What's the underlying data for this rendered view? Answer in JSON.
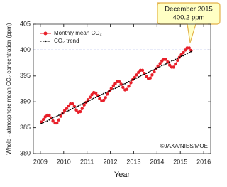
{
  "chart_data": {
    "type": "line",
    "ylabel": "Whole - atmosphere mean CO₂ concentration (ppm)",
    "xlabel": "Year",
    "annotation": {
      "lines": [
        "December 2015",
        "400.2 ppm"
      ]
    },
    "credit": "©JAXA/NIES/MOE",
    "xlim": [
      2008.7,
      2016.3
    ],
    "xticks": [
      2009,
      2010,
      2011,
      2012,
      2013,
      2014,
      2015,
      2016
    ],
    "ylim": [
      380,
      405
    ],
    "yticks": [
      380,
      385,
      390,
      395,
      400,
      405
    ],
    "reference_line": {
      "value": 400,
      "color": "#4a5fd0"
    },
    "x": [
      2009.04,
      2009.13,
      2009.21,
      2009.29,
      2009.38,
      2009.46,
      2009.54,
      2009.63,
      2009.71,
      2009.79,
      2009.88,
      2009.96,
      2010.04,
      2010.13,
      2010.21,
      2010.29,
      2010.38,
      2010.46,
      2010.54,
      2010.63,
      2010.71,
      2010.79,
      2010.88,
      2010.96,
      2011.04,
      2011.13,
      2011.21,
      2011.29,
      2011.38,
      2011.46,
      2011.54,
      2011.63,
      2011.71,
      2011.79,
      2011.88,
      2011.96,
      2012.04,
      2012.13,
      2012.21,
      2012.29,
      2012.38,
      2012.46,
      2012.54,
      2012.63,
      2012.71,
      2012.79,
      2012.88,
      2012.96,
      2013.04,
      2013.13,
      2013.21,
      2013.29,
      2013.38,
      2013.46,
      2013.54,
      2013.63,
      2013.71,
      2013.79,
      2013.88,
      2013.96,
      2014.04,
      2014.13,
      2014.21,
      2014.29,
      2014.38,
      2014.46,
      2014.54,
      2014.63,
      2014.71,
      2014.79,
      2014.88,
      2014.96,
      2015.04,
      2015.13,
      2015.21,
      2015.29,
      2015.38,
      2015.46
    ],
    "series": [
      {
        "name": "Monthly mean CO₂",
        "color": "#e8202a",
        "dashed": false,
        "marker_size": 2.2,
        "values": [
          386.1,
          386.6,
          387.1,
          387.4,
          387.4,
          386.9,
          386.3,
          385.9,
          385.9,
          386.5,
          387.2,
          387.8,
          388.3,
          388.7,
          389.2,
          389.6,
          389.6,
          389.1,
          388.4,
          388.0,
          388.1,
          388.7,
          389.4,
          389.9,
          390.4,
          390.9,
          391.4,
          391.8,
          391.7,
          391.2,
          390.6,
          390.2,
          390.3,
          390.8,
          391.5,
          392.1,
          392.6,
          393.1,
          393.5,
          393.9,
          393.9,
          393.4,
          392.8,
          392.3,
          392.4,
          393.0,
          393.7,
          394.3,
          394.7,
          395.2,
          395.7,
          396.1,
          396.1,
          395.5,
          394.9,
          394.5,
          394.6,
          395.2,
          395.8,
          396.4,
          396.9,
          397.4,
          397.9,
          398.2,
          398.2,
          397.7,
          397.1,
          396.7,
          396.7,
          397.3,
          398.0,
          398.6,
          399.1,
          399.5,
          400.0,
          400.4,
          400.4,
          399.9
        ]
      },
      {
        "name": "CO₂ trend",
        "color": "#000000",
        "dashed": true,
        "marker_size": 0.9,
        "values": [
          385.8,
          386.0,
          386.2,
          386.3,
          386.5,
          386.7,
          386.9,
          387.1,
          387.2,
          387.4,
          387.6,
          387.8,
          388.0,
          388.1,
          388.3,
          388.5,
          388.7,
          388.9,
          389.0,
          389.2,
          389.4,
          389.6,
          389.8,
          389.9,
          390.1,
          390.3,
          390.5,
          390.7,
          390.8,
          391.0,
          391.2,
          391.4,
          391.6,
          391.7,
          391.9,
          392.1,
          392.3,
          392.5,
          392.6,
          392.8,
          393.0,
          393.2,
          393.4,
          393.5,
          393.7,
          393.9,
          394.1,
          394.3,
          394.4,
          394.6,
          394.8,
          395.0,
          395.2,
          395.3,
          395.5,
          395.7,
          395.9,
          396.1,
          396.2,
          396.4,
          396.6,
          396.8,
          397.0,
          397.1,
          397.3,
          397.5,
          397.7,
          397.9,
          398.0,
          398.2,
          398.4,
          398.6,
          398.8,
          398.9,
          399.1,
          399.3,
          399.5,
          399.7
        ]
      }
    ]
  }
}
